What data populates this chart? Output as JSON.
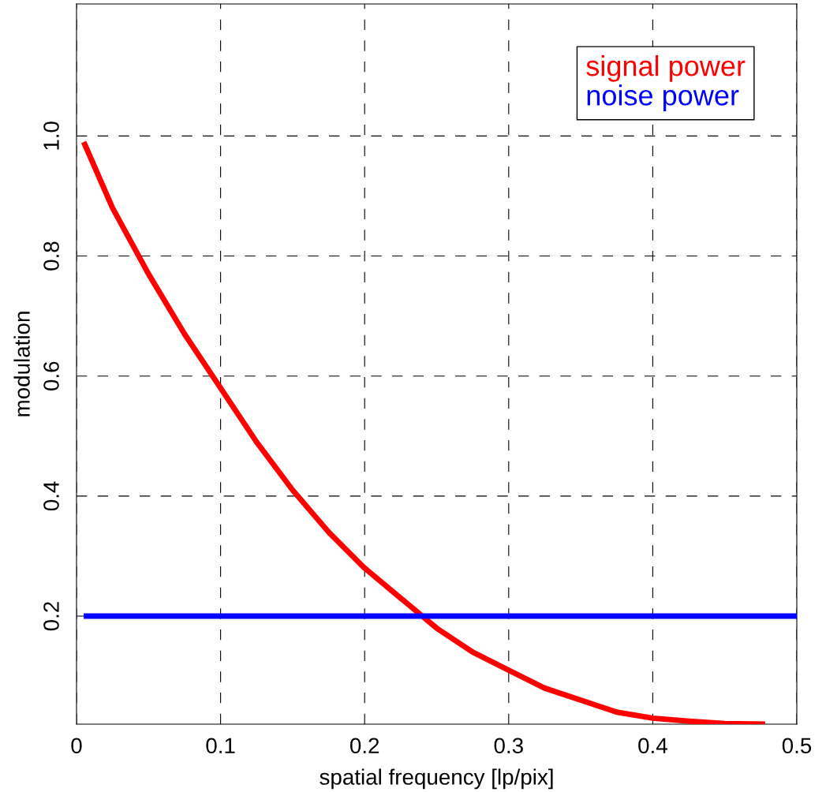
{
  "chart_data": {
    "type": "line",
    "xlabel": "spatial frequency [lp/pix]",
    "ylabel": "modulation",
    "xlim": [
      0,
      0.5
    ],
    "ylim": [
      0.02,
      1.22
    ],
    "xticks": [
      0,
      0.1,
      0.2,
      0.3,
      0.4,
      0.5
    ],
    "yticks": [
      0.2,
      0.4,
      0.6,
      0.8,
      {
        "value": 1.0,
        "label": "1.0"
      }
    ],
    "grid": true,
    "legend": "top right",
    "line_style": "solid",
    "marker": "none",
    "series": [
      {
        "name": "signal power",
        "color": "#ff0000",
        "x": [
          0.005,
          0.025,
          0.05,
          0.075,
          0.1,
          0.125,
          0.15,
          0.175,
          0.2,
          0.225,
          0.25,
          0.275,
          0.3,
          0.325,
          0.35,
          0.375,
          0.4,
          0.425,
          0.45,
          0.478
        ],
        "values": [
          0.99,
          0.88,
          0.77,
          0.67,
          0.58,
          0.49,
          0.41,
          0.34,
          0.28,
          0.23,
          0.18,
          0.14,
          0.11,
          0.08,
          0.06,
          0.04,
          0.03,
          0.025,
          0.021,
          0.02
        ]
      },
      {
        "name": "noise power",
        "color": "#0000ff",
        "x": [
          0.005,
          0.5
        ],
        "values": [
          0.2,
          0.2
        ]
      }
    ]
  }
}
